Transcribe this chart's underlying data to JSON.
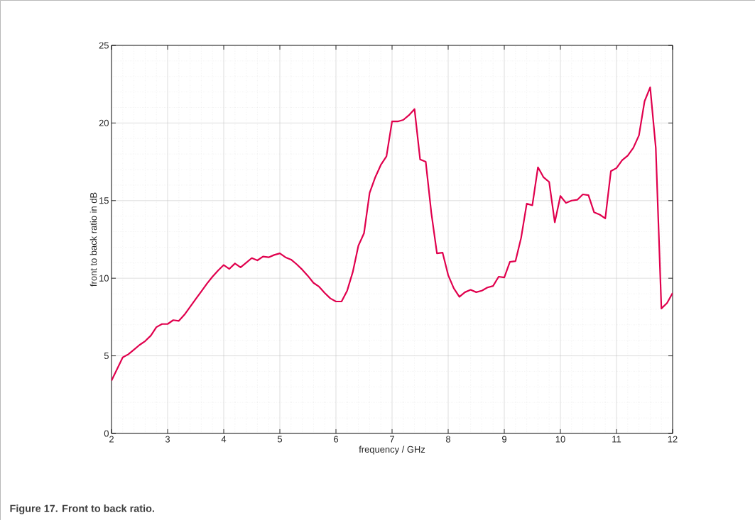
{
  "chart_data": {
    "type": "line",
    "xlabel": "frequency / GHz",
    "ylabel": "front to back ratio in dB",
    "annotations": [
      "Figure 17.  Front to back ratio."
    ],
    "x": [
      2.0,
      2.2,
      2.3,
      2.4,
      2.5,
      2.6,
      2.7,
      2.8,
      2.9,
      3.0,
      3.1,
      3.2,
      3.3,
      3.4,
      3.5,
      3.6,
      3.7,
      3.8,
      3.9,
      4.0,
      4.1,
      4.2,
      4.3,
      4.4,
      4.5,
      4.6,
      4.7,
      4.8,
      4.9,
      5.0,
      5.1,
      5.2,
      5.3,
      5.4,
      5.5,
      5.6,
      5.7,
      5.8,
      5.9,
      6.0,
      6.1,
      6.2,
      6.3,
      6.4,
      6.5,
      6.6,
      6.7,
      6.8,
      6.9,
      7.0,
      7.1,
      7.2,
      7.3,
      7.4,
      7.5,
      7.6,
      7.7,
      7.8,
      7.9,
      8.0,
      8.1,
      8.2,
      8.3,
      8.4,
      8.5,
      8.6,
      8.7,
      8.8,
      8.9,
      9.0,
      9.1,
      9.2,
      9.3,
      9.4,
      9.5,
      9.6,
      9.7,
      9.8,
      9.9,
      10.0,
      10.1,
      10.2,
      10.3,
      10.4,
      10.5,
      10.6,
      10.7,
      10.8,
      10.9,
      11.0,
      11.1,
      11.2,
      11.3,
      11.4,
      11.5,
      11.6,
      11.7,
      11.8,
      11.9,
      12.0
    ],
    "series": [
      {
        "color": "#e0004d",
        "values": [
          3.4,
          4.9,
          5.1,
          5.4,
          5.7,
          5.95,
          6.3,
          6.85,
          7.05,
          7.05,
          7.3,
          7.25,
          7.65,
          8.15,
          8.65,
          9.15,
          9.65,
          10.1,
          10.5,
          10.85,
          10.6,
          10.95,
          10.7,
          11.0,
          11.3,
          11.15,
          11.4,
          11.35,
          11.5,
          11.6,
          11.35,
          11.2,
          10.9,
          10.55,
          10.15,
          9.7,
          9.45,
          9.05,
          8.7,
          8.5,
          8.5,
          9.2,
          10.4,
          12.1,
          12.9,
          15.5,
          16.5,
          17.3,
          17.85,
          20.1,
          20.1,
          20.2,
          20.5,
          20.9,
          17.65,
          17.5,
          14.2,
          11.6,
          11.65,
          10.2,
          9.35,
          8.8,
          9.1,
          9.25,
          9.1,
          9.2,
          9.4,
          9.5,
          10.1,
          10.05,
          11.05,
          11.1,
          12.6,
          14.8,
          14.7,
          17.15,
          16.5,
          16.2,
          13.6,
          15.3,
          14.85,
          15.0,
          15.05,
          15.4,
          15.35,
          14.25,
          14.1,
          13.85,
          16.9,
          17.1,
          17.6,
          17.9,
          18.4,
          19.2,
          21.4,
          22.3,
          18.4,
          8.05,
          8.4,
          9.05
        ]
      }
    ],
    "xlim": [
      2,
      12
    ],
    "ylim": [
      0,
      25
    ],
    "xticks": [
      2,
      3,
      4,
      5,
      6,
      7,
      8,
      9,
      10,
      11,
      12
    ],
    "yticks": [
      0,
      5,
      10,
      15,
      20,
      25
    ],
    "grid": true,
    "line_style": "solid"
  }
}
